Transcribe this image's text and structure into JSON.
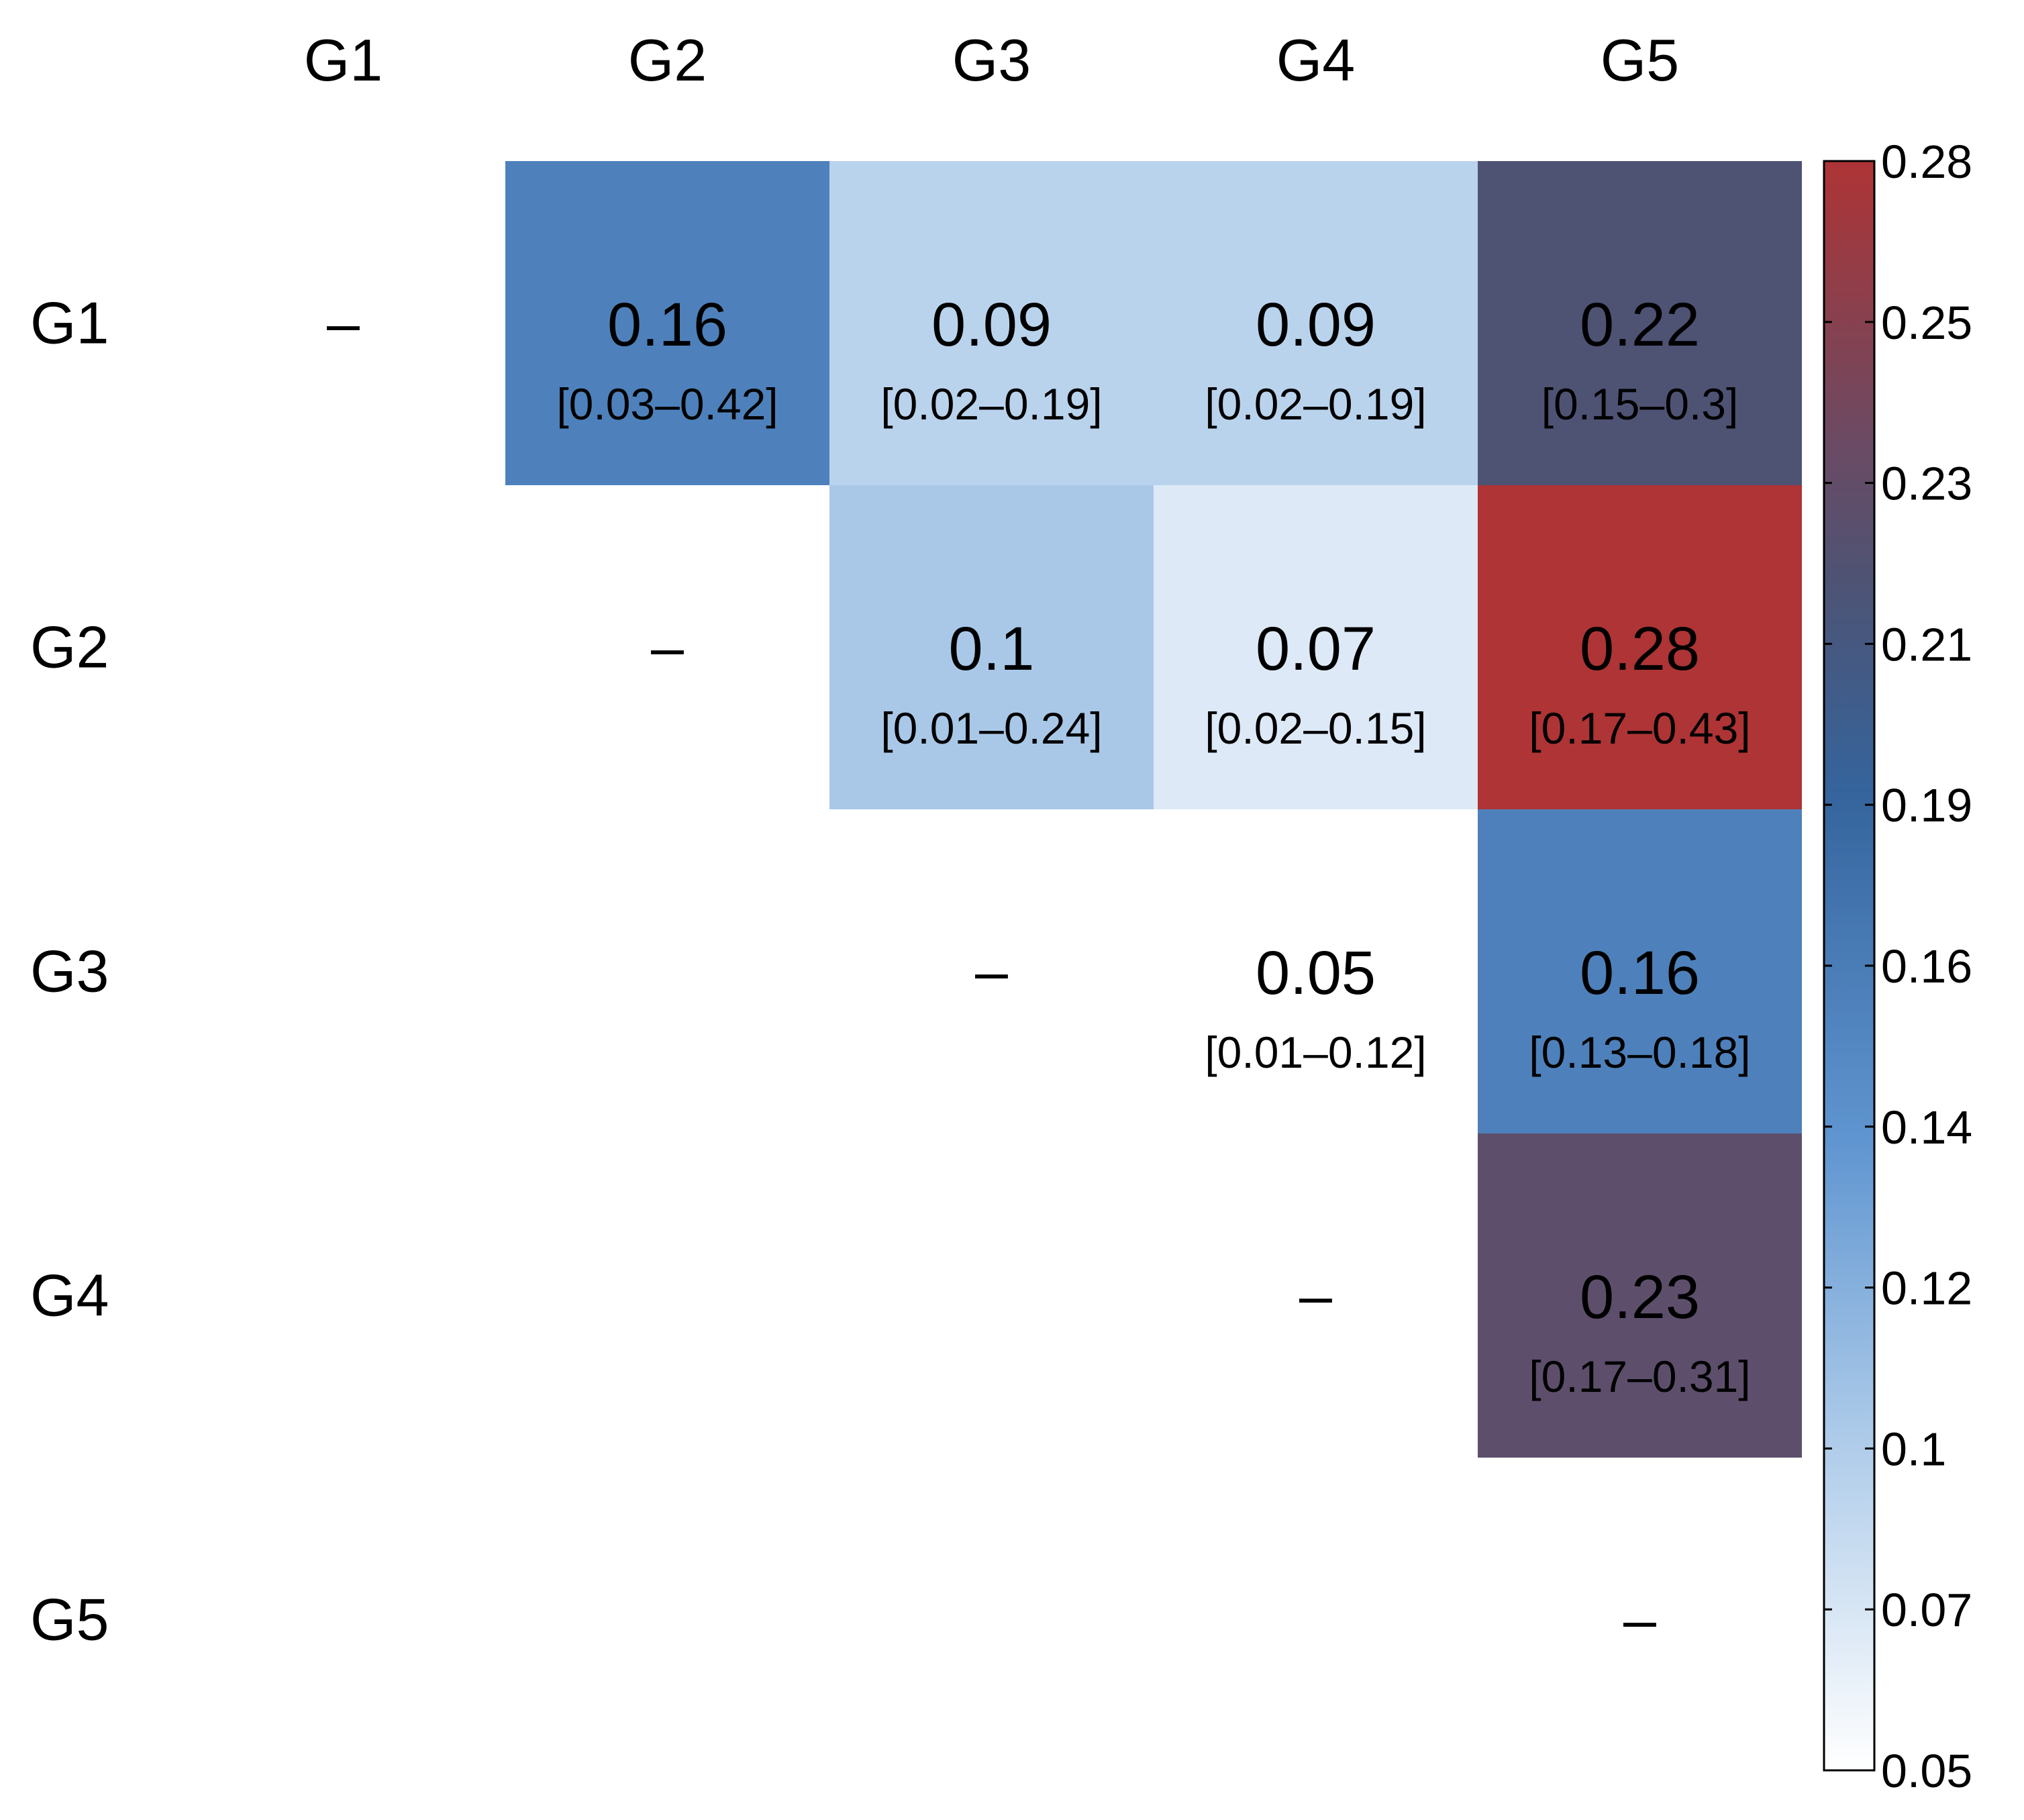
{
  "chart_data": {
    "type": "heatmap",
    "title": "",
    "columns": [
      "G1",
      "G2",
      "G3",
      "G4",
      "G5"
    ],
    "rows": [
      "G1",
      "G2",
      "G3",
      "G4",
      "G5"
    ],
    "diagonal_label": "–",
    "cells": [
      {
        "row": 0,
        "col": 1,
        "value": 0.16,
        "label": "0.16",
        "ci": "[0.03–0.42]"
      },
      {
        "row": 0,
        "col": 2,
        "value": 0.09,
        "label": "0.09",
        "ci": "[0.02–0.19]"
      },
      {
        "row": 0,
        "col": 3,
        "value": 0.09,
        "label": "0.09",
        "ci": "[0.02–0.19]"
      },
      {
        "row": 0,
        "col": 4,
        "value": 0.22,
        "label": "0.22",
        "ci": "[0.15–0.3]"
      },
      {
        "row": 1,
        "col": 2,
        "value": 0.1,
        "label": "0.1",
        "ci": "[0.01–0.24]"
      },
      {
        "row": 1,
        "col": 3,
        "value": 0.07,
        "label": "0.07",
        "ci": "[0.02–0.15]"
      },
      {
        "row": 1,
        "col": 4,
        "value": 0.28,
        "label": "0.28",
        "ci": "[0.17–0.43]"
      },
      {
        "row": 2,
        "col": 3,
        "value": 0.05,
        "label": "0.05",
        "ci": "[0.01–0.12]"
      },
      {
        "row": 2,
        "col": 4,
        "value": 0.16,
        "label": "0.16",
        "ci": "[0.13–0.18]"
      },
      {
        "row": 3,
        "col": 4,
        "value": 0.23,
        "label": "0.23",
        "ci": "[0.17–0.31]"
      }
    ],
    "colorbar": {
      "min": 0.05,
      "max": 0.28,
      "ticks": [
        "0.28",
        "0.25",
        "0.23",
        "0.21",
        "0.19",
        "0.16",
        "0.14",
        "0.12",
        "0.1",
        "0.07",
        "0.05"
      ],
      "stops": [
        {
          "value": 0.05,
          "color": "#ffffff"
        },
        {
          "value": 0.1,
          "color": "#a9c8e8"
        },
        {
          "value": 0.14,
          "color": "#5f95d0"
        },
        {
          "value": 0.19,
          "color": "#35649c"
        },
        {
          "value": 0.22,
          "color": "#4e5374"
        },
        {
          "value": 0.24,
          "color": "#6b4a63"
        },
        {
          "value": 0.28,
          "color": "#ae3435"
        }
      ]
    },
    "legend_position": "right"
  }
}
